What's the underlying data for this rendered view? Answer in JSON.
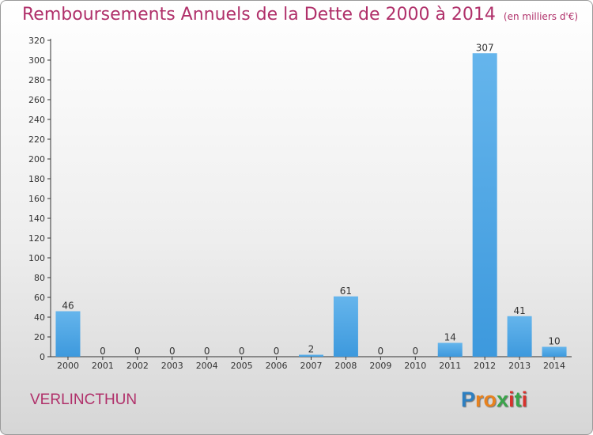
{
  "title": "Remboursements Annuels de la Dette de 2000 à 2014",
  "subtitle": "(en milliers d'€)",
  "commune": "VERLINCTHUN",
  "logo": {
    "text": "Proxiti",
    "letters": [
      "P",
      "r",
      "o",
      "x",
      "i",
      "t",
      "i"
    ],
    "colors": [
      "#2d7fc1",
      "#e8821e",
      "#e8821e",
      "#3aa54a",
      "#d7322c",
      "#3aa54a",
      "#d7322c"
    ]
  },
  "colors": {
    "title": "#b0306a",
    "bar": "#3d99dd",
    "bar_light": "#65b5ec"
  },
  "chart_data": {
    "type": "bar",
    "title": "Remboursements Annuels de la Dette de 2000 à 2014",
    "subtitle": "(en milliers d'€)",
    "categories": [
      "2000",
      "2001",
      "2002",
      "2003",
      "2004",
      "2005",
      "2006",
      "2007",
      "2008",
      "2009",
      "2010",
      "2011",
      "2012",
      "2013",
      "2014"
    ],
    "values": [
      46,
      0,
      0,
      0,
      0,
      0,
      0,
      2,
      61,
      0,
      0,
      14,
      307,
      41,
      10
    ],
    "ylim": [
      0,
      320
    ],
    "yticks": [
      0,
      20,
      40,
      60,
      80,
      100,
      120,
      140,
      160,
      180,
      200,
      220,
      240,
      260,
      280,
      300,
      320
    ],
    "grid": false,
    "legend": "none"
  }
}
